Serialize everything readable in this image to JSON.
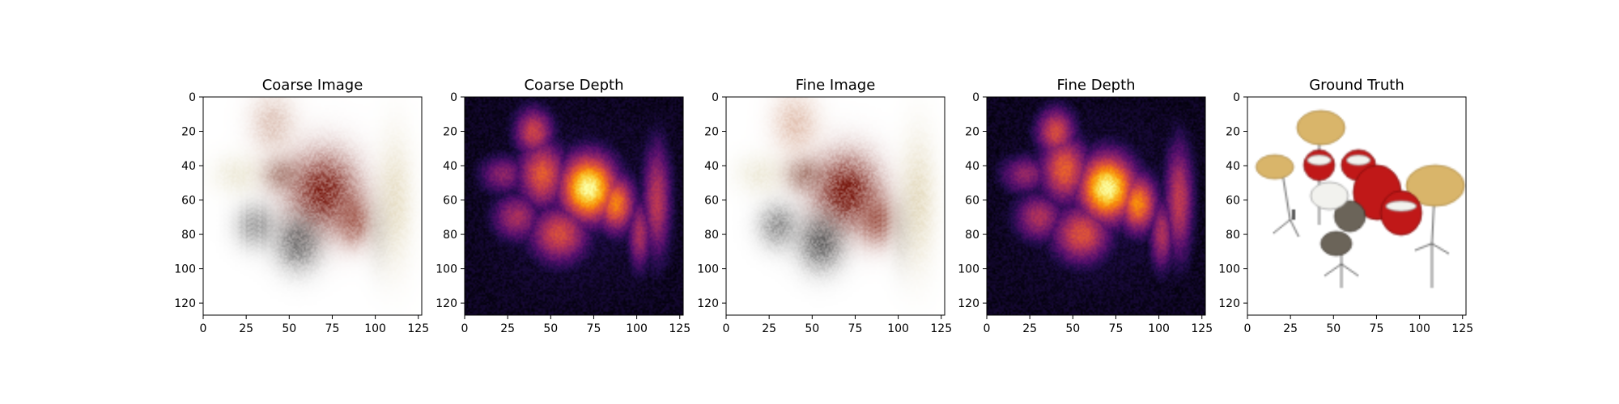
{
  "figure": {
    "background": "#ffffff"
  },
  "chart_data": [
    {
      "type": "heatmap",
      "title": "Coarse Image",
      "render": "rgb-image",
      "xlim": [
        0,
        127
      ],
      "ylim": [
        127,
        0
      ],
      "x_ticks": [
        0,
        25,
        50,
        75,
        100,
        125
      ],
      "y_ticks": [
        0,
        20,
        40,
        60,
        80,
        100,
        120
      ],
      "background": "#ffffff",
      "blobs": [
        {
          "x": 70,
          "y": 55,
          "rx": 14,
          "ry": 16,
          "color": "#7a1a10",
          "strength": 0.85
        },
        {
          "x": 88,
          "y": 72,
          "rx": 7,
          "ry": 10,
          "color": "#8b3020",
          "strength": 0.6
        },
        {
          "x": 45,
          "y": 45,
          "rx": 8,
          "ry": 7,
          "color": "#7a3a2a",
          "strength": 0.45
        },
        {
          "x": 40,
          "y": 15,
          "rx": 9,
          "ry": 12,
          "color": "#c49480",
          "strength": 0.45
        },
        {
          "x": 55,
          "y": 85,
          "rx": 9,
          "ry": 11,
          "color": "#4a4a4a",
          "strength": 0.65
        },
        {
          "x": 30,
          "y": 75,
          "rx": 8,
          "ry": 9,
          "color": "#5a5a5a",
          "strength": 0.5
        },
        {
          "x": 20,
          "y": 45,
          "rx": 10,
          "ry": 8,
          "color": "#d8cfa8",
          "strength": 0.35
        },
        {
          "x": 112,
          "y": 60,
          "rx": 7,
          "ry": 25,
          "color": "#d2c190",
          "strength": 0.4
        },
        {
          "x": 102,
          "y": 78,
          "rx": 5,
          "ry": 15,
          "color": "#aaa090",
          "strength": 0.3
        }
      ]
    },
    {
      "type": "heatmap",
      "title": "Coarse Depth",
      "render": "depth",
      "colormap": "inferno",
      "xlim": [
        0,
        127
      ],
      "ylim": [
        127,
        0
      ],
      "x_ticks": [
        0,
        25,
        50,
        75,
        100,
        125
      ],
      "y_ticks": [
        0,
        20,
        40,
        60,
        80,
        100,
        120
      ],
      "blobs": [
        {
          "x": 72,
          "y": 53,
          "rx": 12,
          "ry": 14,
          "value": 1.0
        },
        {
          "x": 88,
          "y": 62,
          "rx": 8,
          "ry": 12,
          "value": 0.72
        },
        {
          "x": 45,
          "y": 45,
          "rx": 10,
          "ry": 14,
          "value": 0.62
        },
        {
          "x": 40,
          "y": 20,
          "rx": 8,
          "ry": 10,
          "value": 0.55
        },
        {
          "x": 55,
          "y": 80,
          "rx": 12,
          "ry": 12,
          "value": 0.58
        },
        {
          "x": 30,
          "y": 70,
          "rx": 10,
          "ry": 10,
          "value": 0.45
        },
        {
          "x": 22,
          "y": 45,
          "rx": 10,
          "ry": 8,
          "value": 0.38
        },
        {
          "x": 112,
          "y": 60,
          "rx": 6,
          "ry": 24,
          "value": 0.5
        },
        {
          "x": 102,
          "y": 80,
          "rx": 5,
          "ry": 15,
          "value": 0.45
        }
      ]
    },
    {
      "type": "heatmap",
      "title": "Fine Image",
      "render": "rgb-image",
      "xlim": [
        0,
        127
      ],
      "ylim": [
        127,
        0
      ],
      "x_ticks": [
        0,
        25,
        50,
        75,
        100,
        125
      ],
      "y_ticks": [
        0,
        20,
        40,
        60,
        80,
        100,
        120
      ],
      "background": "#ffffff",
      "blobs": [
        {
          "x": 70,
          "y": 55,
          "rx": 13,
          "ry": 15,
          "color": "#7a1a10",
          "strength": 0.9
        },
        {
          "x": 88,
          "y": 72,
          "rx": 7,
          "ry": 10,
          "color": "#8b3020",
          "strength": 0.65
        },
        {
          "x": 45,
          "y": 45,
          "rx": 8,
          "ry": 7,
          "color": "#7a3a2a",
          "strength": 0.5
        },
        {
          "x": 40,
          "y": 15,
          "rx": 9,
          "ry": 12,
          "color": "#d09a80",
          "strength": 0.5
        },
        {
          "x": 55,
          "y": 85,
          "rx": 9,
          "ry": 11,
          "color": "#444444",
          "strength": 0.7
        },
        {
          "x": 30,
          "y": 75,
          "rx": 8,
          "ry": 9,
          "color": "#5a5a5a",
          "strength": 0.55
        },
        {
          "x": 20,
          "y": 45,
          "rx": 10,
          "ry": 8,
          "color": "#d8cfa8",
          "strength": 0.35
        },
        {
          "x": 112,
          "y": 60,
          "rx": 7,
          "ry": 25,
          "color": "#d2c190",
          "strength": 0.45
        },
        {
          "x": 102,
          "y": 78,
          "rx": 5,
          "ry": 15,
          "color": "#aaa090",
          "strength": 0.3
        }
      ]
    },
    {
      "type": "heatmap",
      "title": "Fine Depth",
      "render": "depth",
      "colormap": "inferno",
      "xlim": [
        0,
        127
      ],
      "ylim": [
        127,
        0
      ],
      "x_ticks": [
        0,
        25,
        50,
        75,
        100,
        125
      ],
      "y_ticks": [
        0,
        20,
        40,
        60,
        80,
        100,
        120
      ],
      "blobs": [
        {
          "x": 70,
          "y": 53,
          "rx": 12,
          "ry": 14,
          "value": 1.0
        },
        {
          "x": 88,
          "y": 62,
          "rx": 8,
          "ry": 12,
          "value": 0.74
        },
        {
          "x": 45,
          "y": 42,
          "rx": 10,
          "ry": 14,
          "value": 0.64
        },
        {
          "x": 40,
          "y": 20,
          "rx": 8,
          "ry": 10,
          "value": 0.58
        },
        {
          "x": 55,
          "y": 80,
          "rx": 12,
          "ry": 12,
          "value": 0.6
        },
        {
          "x": 30,
          "y": 70,
          "rx": 10,
          "ry": 10,
          "value": 0.47
        },
        {
          "x": 22,
          "y": 45,
          "rx": 10,
          "ry": 8,
          "value": 0.4
        },
        {
          "x": 112,
          "y": 60,
          "rx": 6,
          "ry": 24,
          "value": 0.52
        },
        {
          "x": 102,
          "y": 80,
          "rx": 5,
          "ry": 15,
          "value": 0.47
        }
      ]
    },
    {
      "type": "heatmap",
      "title": "Ground Truth",
      "render": "drum-kit",
      "xlim": [
        0,
        127
      ],
      "ylim": [
        127,
        0
      ],
      "x_ticks": [
        0,
        25,
        50,
        75,
        100,
        125
      ],
      "y_ticks": [
        0,
        20,
        40,
        60,
        80,
        100,
        120
      ],
      "background": "#ffffff",
      "colors": {
        "cymbal": "#d9b56a",
        "cymbal_edge": "#a98640",
        "drum_red": "#c01818",
        "drum_red_dark": "#7a0c0c",
        "drum_head": "#f2f2ee",
        "drum_shell_grey": "#6b6459",
        "hardware": "#5c5c5c"
      }
    }
  ]
}
